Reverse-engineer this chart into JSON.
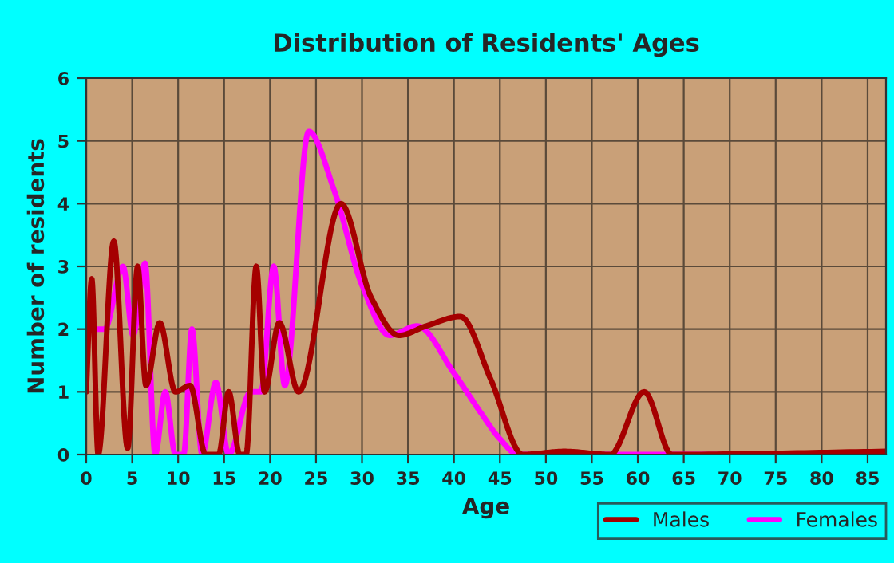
{
  "chart_data": {
    "type": "line",
    "title": "Distribution of Residents' Ages",
    "xlabel": "Age",
    "ylabel": "Number of residents",
    "xlim": [
      0,
      87
    ],
    "xticks": [
      0,
      5,
      10,
      15,
      20,
      25,
      30,
      35,
      40,
      45,
      50,
      55,
      60,
      65,
      70,
      75,
      80,
      85
    ],
    "ylim": [
      0,
      6
    ],
    "yticks": [
      0,
      1,
      2,
      3,
      4,
      5,
      6
    ],
    "grid": true,
    "legend": "bottom right",
    "line_style": "solid",
    "marker": "none",
    "series": [
      {
        "name": "Males",
        "color": "#a50000",
        "x": [
          0,
          0.6,
          1.3,
          3,
          4.5,
          5.6,
          6.5,
          8,
          9.7,
          11.3,
          13,
          14.4,
          15.5,
          16.7,
          17.4,
          18.5,
          19.4,
          21,
          23.1,
          27.7,
          31,
          34,
          37,
          40.7,
          44,
          47.5,
          52,
          57,
          60.7,
          63.7,
          87
        ],
        "values": [
          1,
          2.8,
          0,
          3.4,
          0.1,
          3,
          1.1,
          2.1,
          1,
          1.1,
          0,
          0,
          1,
          0,
          0,
          3,
          1,
          2.1,
          1,
          4,
          2.5,
          1.9,
          2.05,
          2.2,
          1.2,
          0,
          0.05,
          0,
          1,
          0,
          0.05
        ]
      },
      {
        "name": "Females",
        "color": "#ff00ff",
        "x": [
          0,
          2,
          4,
          5.1,
          6.4,
          7.5,
          8.6,
          9.7,
          10.6,
          11.5,
          12.6,
          14.1,
          15.5,
          17.9,
          19,
          20.4,
          21.6,
          24.2,
          27,
          30,
          33,
          36,
          40,
          43,
          45,
          47,
          87
        ],
        "values": [
          2,
          2,
          3,
          1.9,
          3.05,
          0,
          1,
          0,
          0,
          2,
          0,
          1.15,
          0,
          1,
          1,
          3,
          1.1,
          5.15,
          4.2,
          2.7,
          1.9,
          2.05,
          1.3,
          0.65,
          0.25,
          0,
          0
        ]
      }
    ]
  }
}
